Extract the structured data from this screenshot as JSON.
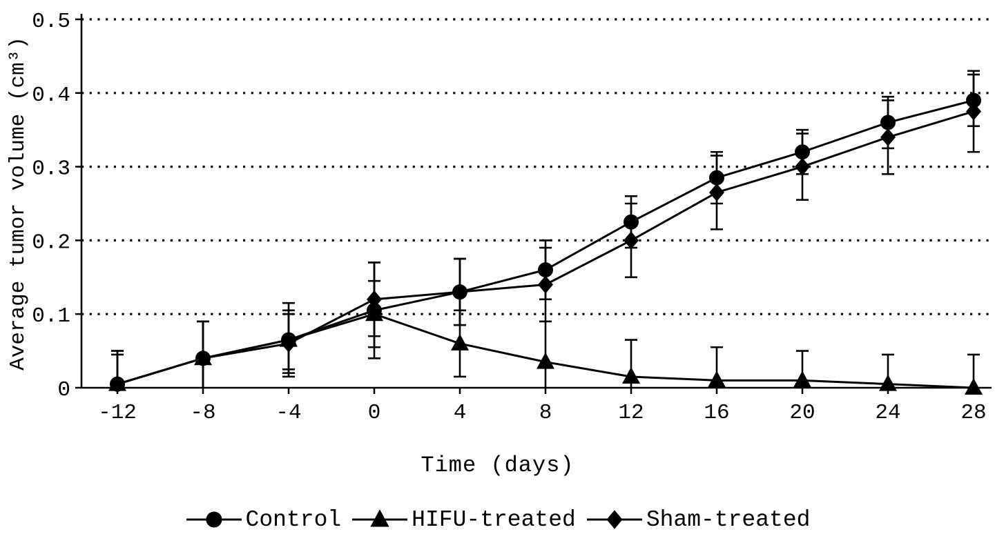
{
  "page": {
    "background_color": "#ffffff",
    "ink_color": "#000000"
  },
  "chart_data": {
    "type": "line",
    "title": "",
    "xlabel": "Time (days)",
    "ylabel": "Average tumor volume (cm³)",
    "x": [
      -12,
      -8,
      -4,
      0,
      4,
      8,
      12,
      16,
      20,
      24,
      28
    ],
    "xtick_labels": [
      "-12",
      "-8",
      "-4",
      "0",
      "4",
      "8",
      "12",
      "16",
      "20",
      "24",
      "28"
    ],
    "ylim": [
      0,
      0.5
    ],
    "yticks": [
      0,
      0.1,
      0.2,
      0.3,
      0.4,
      0.5
    ],
    "ytick_labels": [
      "0",
      "0.1",
      "0.2",
      "0.3",
      "0.4",
      "0.5"
    ],
    "grid": {
      "horizontal": true,
      "vertical": false,
      "style": "dotted"
    },
    "error_bars": true,
    "legend_position": "bottom",
    "series": [
      {
        "name": "Control",
        "marker": "circle",
        "color": "#000000",
        "values": [
          0.005,
          0.04,
          0.065,
          0.105,
          0.13,
          0.16,
          0.225,
          0.285,
          0.32,
          0.36,
          0.39
        ],
        "errors": [
          0.045,
          0.05,
          0.05,
          0.065,
          0.045,
          0.04,
          0.035,
          0.035,
          0.03,
          0.035,
          0.035
        ]
      },
      {
        "name": "HIFU-treated",
        "marker": "triangle",
        "color": "#000000",
        "values": [
          0.005,
          0.04,
          0.065,
          0.1,
          0.06,
          0.035,
          0.015,
          0.01,
          0.01,
          0.005,
          0.0
        ],
        "errors": [
          0.045,
          0.05,
          0.04,
          0.045,
          0.045,
          0.055,
          0.05,
          0.045,
          0.04,
          0.04,
          0.045
        ]
      },
      {
        "name": "Sham-treated",
        "marker": "diamond",
        "color": "#000000",
        "values": [
          0.005,
          0.04,
          0.06,
          0.12,
          0.13,
          0.14,
          0.2,
          0.265,
          0.3,
          0.34,
          0.375
        ],
        "errors": [
          0.04,
          0.05,
          0.04,
          0.05,
          0.045,
          0.05,
          0.05,
          0.05,
          0.045,
          0.05,
          0.055
        ]
      }
    ]
  }
}
